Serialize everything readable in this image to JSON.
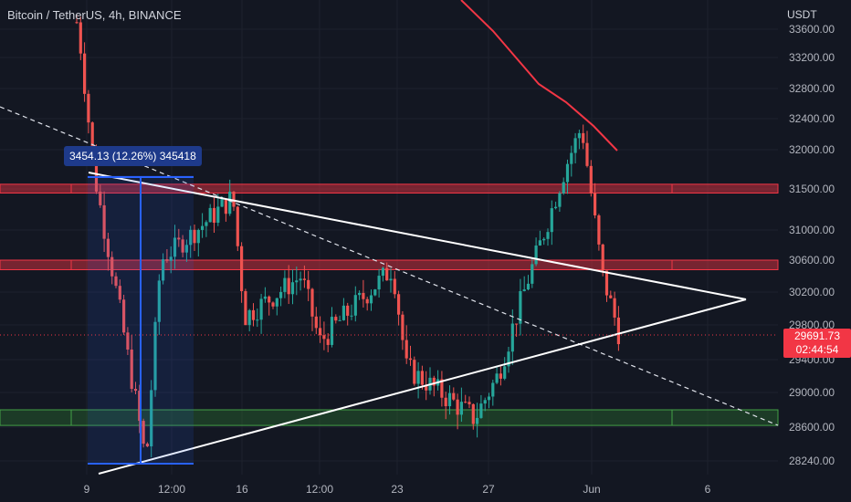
{
  "header": {
    "title": "Bitcoin / TetherUS, 4h, BINANCE"
  },
  "price_axis": {
    "currency": "USDT"
  },
  "price_tag": {
    "price": "29691.73",
    "countdown": "02:44:54",
    "color": "#f23645"
  },
  "measure_label": "3454.13 (12.26%) 345418",
  "colors": {
    "up": "#26a69a",
    "down": "#ef5350",
    "ma": "#f23645",
    "resistance": "#f23645",
    "support": "#2e7d32"
  },
  "chart_data": {
    "type": "candlestick",
    "x_ticks": [
      "9",
      "12:00",
      "16",
      "12:00",
      "23",
      "27",
      "Jun",
      "6"
    ],
    "y_ticks": [
      33600,
      33200,
      32800,
      32400,
      32000,
      31500,
      31000,
      30600,
      30200,
      29800,
      29400,
      29000,
      28600,
      28240
    ],
    "ylim": [
      28000,
      33900
    ],
    "zones": [
      {
        "type": "resistance",
        "low": 31450,
        "high": 31560
      },
      {
        "type": "resistance",
        "low": 30480,
        "high": 30600
      },
      {
        "type": "support",
        "low": 28620,
        "high": 28800
      }
    ],
    "last_price": 29691.73,
    "series": [
      {
        "name": "BTCUSDT",
        "approx_path": [
          [
            "9",
            33700
          ],
          [
            "9",
            31700
          ],
          [
            "12:00",
            28200
          ],
          [
            "12:00",
            30600
          ],
          [
            "16",
            31400
          ],
          [
            "16",
            29900
          ],
          [
            "12:00",
            30400
          ],
          [
            "12:00",
            29600
          ],
          [
            "23",
            30500
          ],
          [
            "23",
            29300
          ],
          [
            "27",
            28700
          ],
          [
            "27",
            29200
          ],
          [
            "Jun",
            31800
          ],
          [
            "Jun",
            32300
          ],
          [
            "Jun",
            30400
          ],
          [
            "Jun",
            29700
          ]
        ]
      }
    ]
  }
}
